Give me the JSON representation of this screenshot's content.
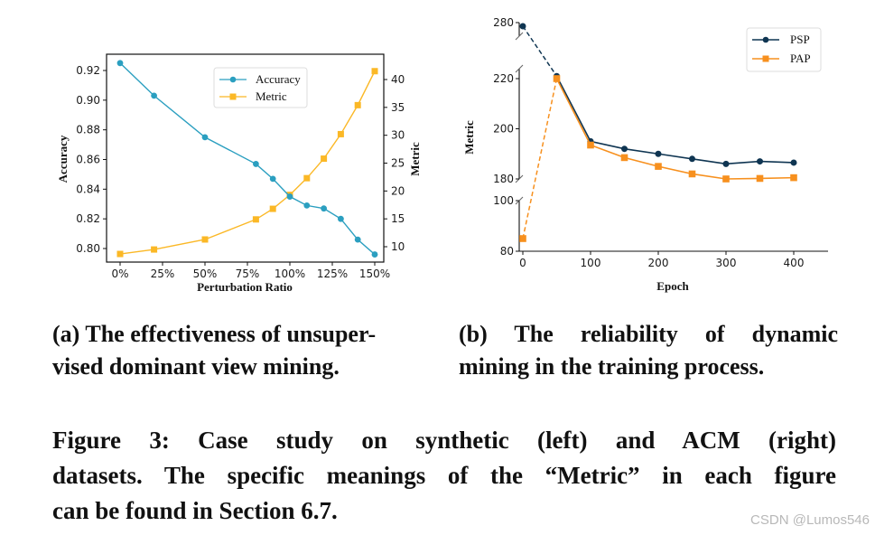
{
  "chart_data": [
    {
      "type": "line",
      "panel": "a",
      "title": "",
      "xlabel": "Perturbation Ratio",
      "ylabel": "Accuracy",
      "ylabel_right": "Metric",
      "x": [
        "0%",
        "20%",
        "50%",
        "80%",
        "90%",
        "100%",
        "110%",
        "120%",
        "130%",
        "140%",
        "150%"
      ],
      "x_numeric": [
        0,
        20,
        50,
        80,
        90,
        100,
        110,
        120,
        130,
        140,
        150
      ],
      "xticks": [
        "0%",
        "25%",
        "50%",
        "75%",
        "100%",
        "125%",
        "150%"
      ],
      "yticks_left": [
        "0.80",
        "0.82",
        "0.84",
        "0.86",
        "0.88",
        "0.90",
        "0.92"
      ],
      "yticks_right": [
        "10",
        "15",
        "20",
        "25",
        "30",
        "35",
        "40"
      ],
      "series": [
        {
          "name": "Accuracy",
          "axis": "left",
          "color": "#2b9fc0",
          "marker": "circle",
          "values": [
            0.925,
            0.903,
            0.875,
            0.857,
            0.847,
            0.835,
            0.829,
            0.827,
            0.82,
            0.806,
            0.796
          ]
        },
        {
          "name": "Metric",
          "axis": "right",
          "color": "#fbb826",
          "marker": "square",
          "values": [
            8.7,
            9.5,
            11.3,
            14.9,
            16.8,
            19.3,
            22.3,
            25.8,
            30.2,
            35.4,
            41.5
          ]
        }
      ],
      "ylim_left": [
        0.79,
        0.93
      ],
      "ylim_right": [
        7.5,
        43
      ],
      "legend": {
        "position": "upper center",
        "entries": [
          "Accuracy",
          "Metric"
        ]
      },
      "grid": false
    },
    {
      "type": "line",
      "panel": "b",
      "title": "",
      "xlabel": "Epoch",
      "ylabel": "Metric",
      "x": [
        0,
        50,
        100,
        150,
        200,
        250,
        300,
        350,
        400
      ],
      "xticks": [
        "0",
        "100",
        "200",
        "300",
        "400"
      ],
      "yticks": [
        "80",
        "100",
        "180",
        "200",
        "220",
        "280"
      ],
      "broken_axis": {
        "segments": [
          [
            80,
            100
          ],
          [
            180,
            222
          ],
          [
            276,
            280
          ]
        ]
      },
      "series": [
        {
          "name": "PSP",
          "color": "#0f3552",
          "marker": "circle",
          "values": [
            278,
            221,
            195,
            192,
            190,
            188,
            186,
            187,
            186.5
          ],
          "dashed_first_segment": true
        },
        {
          "name": "PAP",
          "color": "#f7901e",
          "marker": "square",
          "values": [
            85,
            220,
            193.5,
            188.5,
            185,
            182,
            180,
            180.2,
            180.5
          ],
          "dashed_first_segment": true
        }
      ],
      "legend": {
        "position": "upper right",
        "entries": [
          "PSP",
          "PAP"
        ]
      },
      "grid": false
    }
  ],
  "subcaptions": {
    "a": {
      "line1": "(a) The effectiveness of unsuper-",
      "line2": "vised dominant view mining."
    },
    "b": {
      "line1": "(b) The reliability of dynamic",
      "line2": "mining in the training process."
    }
  },
  "figure_caption": {
    "line1": "Figure 3: Case study on synthetic (left) and ACM (right)",
    "line2": "datasets. The specific meanings of the “Metric” in each figure",
    "line3": "can be found in Section 6.7."
  },
  "watermark": "CSDN @Lumos546"
}
